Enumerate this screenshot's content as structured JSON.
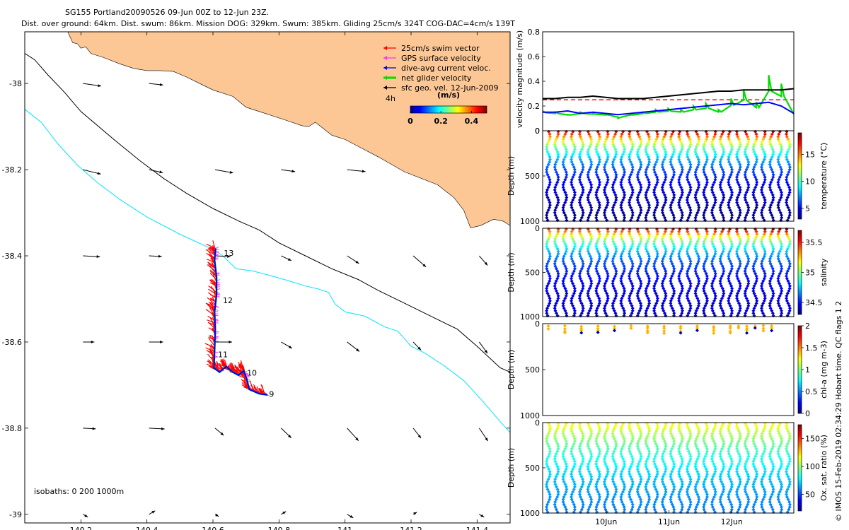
{
  "title": {
    "line1": "SG155 Portland20090526 09-Jun 00Z to 12-Jun 23Z.",
    "line2": "Dist. over ground: 64km. Dist. swum: 86km. Mission DOG: 329km. Swum: 385km. Gliding 25cm/s 324T COG-DAC=4cm/s 139T"
  },
  "credit": "© IMOS 15-Feb-2019 02:34:29 Hobart time. QC flags 1  2",
  "colors": {
    "land": "#fcc795",
    "isobath_200": "#00e5ff",
    "isobath_1000": "#000000",
    "swim": "#ff0000",
    "gps": "#ff33ff",
    "dac": "#0000ff",
    "net": "#00dd00",
    "ref_line": "#ff0000"
  },
  "chart_data": [
    {
      "type": "map",
      "name": "glider-track-map",
      "x_ticks": [
        "140.2",
        "140.4",
        "140.6",
        "140.8",
        "141",
        "141.2",
        "141.4"
      ],
      "x_tick_values": [
        140.2,
        140.4,
        140.6,
        140.8,
        141.0,
        141.2,
        141.4
      ],
      "y_ticks": [
        "-38",
        "-38.2",
        "-38.4",
        "-38.6",
        "-38.8",
        "-39"
      ],
      "y_tick_values": [
        -38.0,
        -38.2,
        -38.4,
        -38.6,
        -38.8,
        -39.0
      ],
      "xlim": [
        140.03,
        141.5
      ],
      "ylim": [
        -39.02,
        -37.88
      ],
      "legend": [
        {
          "label": "25cm/s swim vector",
          "color": "#ff0000"
        },
        {
          "label": "GPS surface velocity",
          "color": "#ff33ff"
        },
        {
          "label": "dive-avg current veloc.",
          "color": "#0000ff"
        },
        {
          "label": "net glider velocity",
          "color": "#00dd00"
        },
        {
          "label": "sfc geo. vel. 12-Jun-2009",
          "color": "#000000"
        }
      ],
      "legend_note": "4h",
      "colorbar": {
        "label": "(m/s)",
        "ticks": [
          "0",
          "0.2",
          "0.4"
        ],
        "range": [
          0,
          0.5
        ]
      },
      "isobath_label": "isobaths: 0   200  1000m",
      "track": [
        [
          140.608,
          -38.383
        ],
        [
          140.605,
          -38.41
        ],
        [
          140.611,
          -38.45
        ],
        [
          140.611,
          -38.49
        ],
        [
          140.605,
          -38.53
        ],
        [
          140.607,
          -38.57
        ],
        [
          140.605,
          -38.62
        ],
        [
          140.603,
          -38.66
        ],
        [
          140.62,
          -38.67
        ],
        [
          140.64,
          -38.657
        ],
        [
          140.66,
          -38.67
        ],
        [
          140.677,
          -38.677
        ],
        [
          140.693,
          -38.667
        ],
        [
          140.702,
          -38.685
        ],
        [
          140.71,
          -38.71
        ],
        [
          140.74,
          -38.72
        ],
        [
          140.765,
          -38.723
        ]
      ],
      "day_labels": [
        {
          "text": "13",
          "lon": 140.633,
          "lat": -38.4
        },
        {
          "text": "12",
          "lon": 140.63,
          "lat": -38.51
        },
        {
          "text": "11",
          "lon": 140.615,
          "lat": -38.635
        },
        {
          "text": "10",
          "lon": 140.703,
          "lat": -38.678
        },
        {
          "text": "9",
          "lon": 140.77,
          "lat": -38.727
        }
      ],
      "coast": [
        [
          140.16,
          -37.88
        ],
        [
          140.175,
          -37.905
        ],
        [
          140.19,
          -37.908
        ],
        [
          140.2,
          -37.918
        ],
        [
          140.215,
          -37.915
        ],
        [
          140.23,
          -37.93
        ],
        [
          140.27,
          -37.94
        ],
        [
          140.32,
          -37.955
        ],
        [
          140.36,
          -37.965
        ],
        [
          140.4,
          -37.97
        ],
        [
          140.44,
          -37.97
        ],
        [
          140.48,
          -37.972
        ],
        [
          140.52,
          -37.985
        ],
        [
          140.56,
          -38.0
        ],
        [
          140.6,
          -38.015
        ],
        [
          140.66,
          -38.03
        ],
        [
          140.7,
          -38.055
        ],
        [
          140.76,
          -38.07
        ],
        [
          140.82,
          -38.085
        ],
        [
          140.87,
          -38.098
        ],
        [
          140.89,
          -38.1
        ],
        [
          140.91,
          -38.09
        ],
        [
          140.96,
          -38.12
        ],
        [
          141.0,
          -38.13
        ],
        [
          141.05,
          -38.15
        ],
        [
          141.1,
          -38.17
        ],
        [
          141.18,
          -38.205
        ],
        [
          141.28,
          -38.235
        ],
        [
          141.33,
          -38.265
        ],
        [
          141.36,
          -38.295
        ],
        [
          141.38,
          -38.335
        ],
        [
          141.41,
          -38.33
        ],
        [
          141.45,
          -38.315
        ],
        [
          141.48,
          -38.32
        ],
        [
          141.5,
          -38.33
        ]
      ],
      "isobath_200": [
        [
          140.03,
          -38.06
        ],
        [
          140.08,
          -38.09
        ],
        [
          140.13,
          -38.14
        ],
        [
          140.19,
          -38.19
        ],
        [
          140.25,
          -38.23
        ],
        [
          140.32,
          -38.27
        ],
        [
          140.4,
          -38.31
        ],
        [
          140.5,
          -38.35
        ],
        [
          140.6,
          -38.385
        ],
        [
          140.63,
          -38.4
        ],
        [
          140.67,
          -38.43
        ],
        [
          140.72,
          -38.435
        ],
        [
          140.77,
          -38.445
        ],
        [
          140.83,
          -38.458
        ],
        [
          140.88,
          -38.47
        ],
        [
          140.92,
          -38.477
        ],
        [
          140.95,
          -38.485
        ],
        [
          140.97,
          -38.512
        ],
        [
          141.0,
          -38.53
        ],
        [
          141.06,
          -38.54
        ],
        [
          141.12,
          -38.565
        ],
        [
          141.16,
          -38.575
        ],
        [
          141.2,
          -38.61
        ],
        [
          141.24,
          -38.625
        ],
        [
          141.3,
          -38.655
        ],
        [
          141.36,
          -38.69
        ],
        [
          141.42,
          -38.74
        ],
        [
          141.47,
          -38.785
        ],
        [
          141.5,
          -38.81
        ]
      ],
      "isobath_1000": [
        [
          140.03,
          -37.93
        ],
        [
          140.06,
          -37.945
        ],
        [
          140.1,
          -37.98
        ],
        [
          140.15,
          -38.02
        ],
        [
          140.2,
          -38.065
        ],
        [
          140.3,
          -38.13
        ],
        [
          140.38,
          -38.18
        ],
        [
          140.45,
          -38.22
        ],
        [
          140.52,
          -38.255
        ],
        [
          140.6,
          -38.29
        ],
        [
          140.68,
          -38.32
        ],
        [
          140.74,
          -38.34
        ],
        [
          140.8,
          -38.37
        ],
        [
          140.88,
          -38.4
        ],
        [
          140.96,
          -38.43
        ],
        [
          141.04,
          -38.455
        ],
        [
          141.1,
          -38.48
        ],
        [
          141.18,
          -38.51
        ],
        [
          141.26,
          -38.54
        ],
        [
          141.34,
          -38.57
        ],
        [
          141.4,
          -38.61
        ],
        [
          141.47,
          -38.66
        ],
        [
          141.5,
          -38.67
        ]
      ],
      "geo_vectors_note": "sfc geo. vel. vectors on a 0.2° grid"
    },
    {
      "type": "line",
      "name": "velocity-magnitude-panel",
      "ylabel": "velocity magnitude (m/s)",
      "ylim": [
        0,
        0.8
      ],
      "y_ticks": [
        "0",
        "0.2",
        "0.4",
        "0.6",
        "0.8"
      ],
      "y_tick_values": [
        0,
        0.2,
        0.4,
        0.6,
        0.8
      ],
      "reference_line": 0.25,
      "series": [
        {
          "name": "net glider velocity",
          "color": "#00dd00",
          "x": [
            0,
            0.05,
            0.1,
            0.15,
            0.2,
            0.25,
            0.3,
            0.35,
            0.4,
            0.45,
            0.5,
            0.55,
            0.6,
            0.65,
            0.7,
            0.75,
            0.8,
            0.85,
            0.9,
            0.95,
            1.0
          ],
          "values": [
            0.16,
            0.15,
            0.13,
            0.15,
            0.14,
            0.13,
            0.1,
            0.13,
            0.15,
            0.17,
            0.18,
            0.17,
            0.2,
            0.22,
            0.17,
            0.26,
            0.33,
            0.23,
            0.45,
            0.38,
            0.14
          ]
        },
        {
          "name": "dive-avg current veloc.",
          "color": "#0000ff",
          "x": [
            0,
            0.05,
            0.1,
            0.15,
            0.2,
            0.25,
            0.3,
            0.35,
            0.4,
            0.45,
            0.5,
            0.55,
            0.6,
            0.65,
            0.7,
            0.75,
            0.8,
            0.85,
            0.9,
            0.95,
            1.0
          ],
          "values": [
            0.15,
            0.15,
            0.16,
            0.14,
            0.15,
            0.14,
            0.13,
            0.14,
            0.15,
            0.16,
            0.17,
            0.18,
            0.19,
            0.2,
            0.21,
            0.22,
            0.21,
            0.22,
            0.23,
            0.2,
            0.14
          ]
        },
        {
          "name": "speed through water",
          "color": "#000000",
          "x": [
            0,
            0.05,
            0.1,
            0.15,
            0.2,
            0.25,
            0.3,
            0.35,
            0.4,
            0.45,
            0.5,
            0.55,
            0.6,
            0.65,
            0.7,
            0.75,
            0.8,
            0.85,
            0.9,
            0.95,
            1.0
          ],
          "values": [
            0.26,
            0.26,
            0.27,
            0.27,
            0.28,
            0.27,
            0.26,
            0.26,
            0.26,
            0.27,
            0.28,
            0.29,
            0.3,
            0.31,
            0.32,
            0.32,
            0.33,
            0.33,
            0.33,
            0.33,
            0.34
          ]
        }
      ]
    },
    {
      "type": "scatter",
      "name": "temperature-section",
      "variable": "temp",
      "ylabel": "Depth (m)",
      "y_ticks": [
        "0",
        "500",
        "1000"
      ],
      "y_tick_values": [
        0,
        500,
        1000
      ],
      "colorbar_label": "temperature (°C)",
      "colorbar_ticks": [
        "5",
        "10",
        "15"
      ],
      "colorbar_tick_values": [
        5,
        10,
        15
      ],
      "crange": [
        3,
        19
      ],
      "dives": 30,
      "max_depth": 1000
    },
    {
      "type": "scatter",
      "name": "salinity-section",
      "variable": "sal",
      "ylabel": "Depth (m)",
      "y_ticks": [
        "0",
        "500",
        "1000"
      ],
      "y_tick_values": [
        0,
        500,
        1000
      ],
      "colorbar_label": "salinity",
      "colorbar_ticks": [
        "34.5",
        "35",
        "35.5"
      ],
      "colorbar_tick_values": [
        34.5,
        35.0,
        35.5
      ],
      "crange": [
        34.3,
        35.7
      ],
      "dives": 30,
      "max_depth": 1000
    },
    {
      "type": "scatter",
      "name": "chlorophyll-section",
      "variable": "chl",
      "ylabel": "Depth (m)",
      "y_ticks": [
        "0",
        "500",
        "1000"
      ],
      "y_tick_values": [
        0,
        500,
        1000
      ],
      "colorbar_label": "chl-a (mg m-3)",
      "colorbar_ticks": [
        "0",
        "0.5",
        "1",
        "1.5",
        "2"
      ],
      "colorbar_tick_values": [
        0,
        0.5,
        1,
        1.5,
        2
      ],
      "crange": [
        0,
        2
      ],
      "dives": 30,
      "max_depth": 1000
    },
    {
      "type": "scatter",
      "name": "oxygen-section",
      "variable": "oxy",
      "ylabel": "Depth (m)",
      "y_ticks": [
        "0",
        "500",
        "1000"
      ],
      "y_tick_values": [
        0,
        500,
        1000
      ],
      "colorbar_label": "Ox. sat. ratio (%)",
      "colorbar_ticks": [
        "50",
        "100",
        "150"
      ],
      "colorbar_tick_values": [
        50,
        100,
        150
      ],
      "crange": [
        20,
        175
      ],
      "dives": 30,
      "max_depth": 1000,
      "x_ticks": [
        "10Jun",
        "11Jun",
        "12Jun"
      ],
      "x_tick_values": [
        1,
        2,
        3
      ],
      "xlim": [
        0,
        4
      ]
    }
  ]
}
